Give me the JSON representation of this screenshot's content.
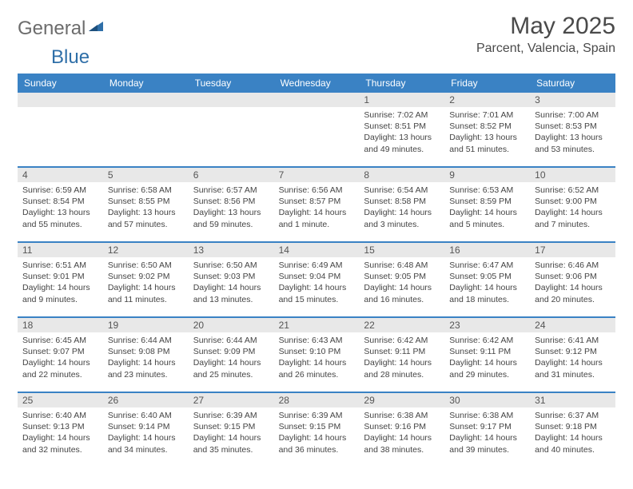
{
  "brand": {
    "text1": "General",
    "text2": "Blue"
  },
  "title": "May 2025",
  "location": "Parcent, Valencia, Spain",
  "colors": {
    "header_bg": "#3a82c4",
    "header_fg": "#ffffff",
    "daynum_bg": "#e8e8e8",
    "text": "#444444",
    "rule": "#3a82c4"
  },
  "weekdays": [
    "Sunday",
    "Monday",
    "Tuesday",
    "Wednesday",
    "Thursday",
    "Friday",
    "Saturday"
  ],
  "weeks": [
    [
      null,
      null,
      null,
      null,
      {
        "n": "1",
        "sr": "7:02 AM",
        "ss": "8:51 PM",
        "dl": "13 hours and 49 minutes."
      },
      {
        "n": "2",
        "sr": "7:01 AM",
        "ss": "8:52 PM",
        "dl": "13 hours and 51 minutes."
      },
      {
        "n": "3",
        "sr": "7:00 AM",
        "ss": "8:53 PM",
        "dl": "13 hours and 53 minutes."
      }
    ],
    [
      {
        "n": "4",
        "sr": "6:59 AM",
        "ss": "8:54 PM",
        "dl": "13 hours and 55 minutes."
      },
      {
        "n": "5",
        "sr": "6:58 AM",
        "ss": "8:55 PM",
        "dl": "13 hours and 57 minutes."
      },
      {
        "n": "6",
        "sr": "6:57 AM",
        "ss": "8:56 PM",
        "dl": "13 hours and 59 minutes."
      },
      {
        "n": "7",
        "sr": "6:56 AM",
        "ss": "8:57 PM",
        "dl": "14 hours and 1 minute."
      },
      {
        "n": "8",
        "sr": "6:54 AM",
        "ss": "8:58 PM",
        "dl": "14 hours and 3 minutes."
      },
      {
        "n": "9",
        "sr": "6:53 AM",
        "ss": "8:59 PM",
        "dl": "14 hours and 5 minutes."
      },
      {
        "n": "10",
        "sr": "6:52 AM",
        "ss": "9:00 PM",
        "dl": "14 hours and 7 minutes."
      }
    ],
    [
      {
        "n": "11",
        "sr": "6:51 AM",
        "ss": "9:01 PM",
        "dl": "14 hours and 9 minutes."
      },
      {
        "n": "12",
        "sr": "6:50 AM",
        "ss": "9:02 PM",
        "dl": "14 hours and 11 minutes."
      },
      {
        "n": "13",
        "sr": "6:50 AM",
        "ss": "9:03 PM",
        "dl": "14 hours and 13 minutes."
      },
      {
        "n": "14",
        "sr": "6:49 AM",
        "ss": "9:04 PM",
        "dl": "14 hours and 15 minutes."
      },
      {
        "n": "15",
        "sr": "6:48 AM",
        "ss": "9:05 PM",
        "dl": "14 hours and 16 minutes."
      },
      {
        "n": "16",
        "sr": "6:47 AM",
        "ss": "9:05 PM",
        "dl": "14 hours and 18 minutes."
      },
      {
        "n": "17",
        "sr": "6:46 AM",
        "ss": "9:06 PM",
        "dl": "14 hours and 20 minutes."
      }
    ],
    [
      {
        "n": "18",
        "sr": "6:45 AM",
        "ss": "9:07 PM",
        "dl": "14 hours and 22 minutes."
      },
      {
        "n": "19",
        "sr": "6:44 AM",
        "ss": "9:08 PM",
        "dl": "14 hours and 23 minutes."
      },
      {
        "n": "20",
        "sr": "6:44 AM",
        "ss": "9:09 PM",
        "dl": "14 hours and 25 minutes."
      },
      {
        "n": "21",
        "sr": "6:43 AM",
        "ss": "9:10 PM",
        "dl": "14 hours and 26 minutes."
      },
      {
        "n": "22",
        "sr": "6:42 AM",
        "ss": "9:11 PM",
        "dl": "14 hours and 28 minutes."
      },
      {
        "n": "23",
        "sr": "6:42 AM",
        "ss": "9:11 PM",
        "dl": "14 hours and 29 minutes."
      },
      {
        "n": "24",
        "sr": "6:41 AM",
        "ss": "9:12 PM",
        "dl": "14 hours and 31 minutes."
      }
    ],
    [
      {
        "n": "25",
        "sr": "6:40 AM",
        "ss": "9:13 PM",
        "dl": "14 hours and 32 minutes."
      },
      {
        "n": "26",
        "sr": "6:40 AM",
        "ss": "9:14 PM",
        "dl": "14 hours and 34 minutes."
      },
      {
        "n": "27",
        "sr": "6:39 AM",
        "ss": "9:15 PM",
        "dl": "14 hours and 35 minutes."
      },
      {
        "n": "28",
        "sr": "6:39 AM",
        "ss": "9:15 PM",
        "dl": "14 hours and 36 minutes."
      },
      {
        "n": "29",
        "sr": "6:38 AM",
        "ss": "9:16 PM",
        "dl": "14 hours and 38 minutes."
      },
      {
        "n": "30",
        "sr": "6:38 AM",
        "ss": "9:17 PM",
        "dl": "14 hours and 39 minutes."
      },
      {
        "n": "31",
        "sr": "6:37 AM",
        "ss": "9:18 PM",
        "dl": "14 hours and 40 minutes."
      }
    ]
  ],
  "labels": {
    "sunrise": "Sunrise: ",
    "sunset": "Sunset: ",
    "daylight": "Daylight: "
  }
}
